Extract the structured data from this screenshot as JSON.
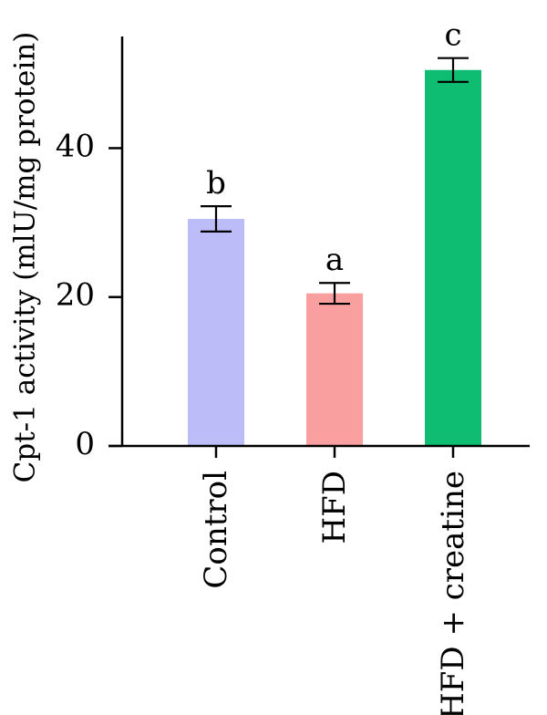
{
  "chart_data": {
    "type": "bar",
    "categories": [
      "Control",
      "HFD",
      "HFD + creatine"
    ],
    "values": [
      30.5,
      20.5,
      50.5
    ],
    "errors": [
      1.7,
      1.4,
      1.6
    ],
    "significance": [
      "b",
      "a",
      "c"
    ],
    "colors": [
      "#bcbcf9",
      "#fa9f9f",
      "#0fbd72"
    ],
    "ylabel": "Cpt-1 activity (mlU/mg protein)",
    "ylim": [
      0,
      55
    ],
    "yticks": [
      0,
      20,
      40
    ],
    "grid": false,
    "legend": "none"
  }
}
